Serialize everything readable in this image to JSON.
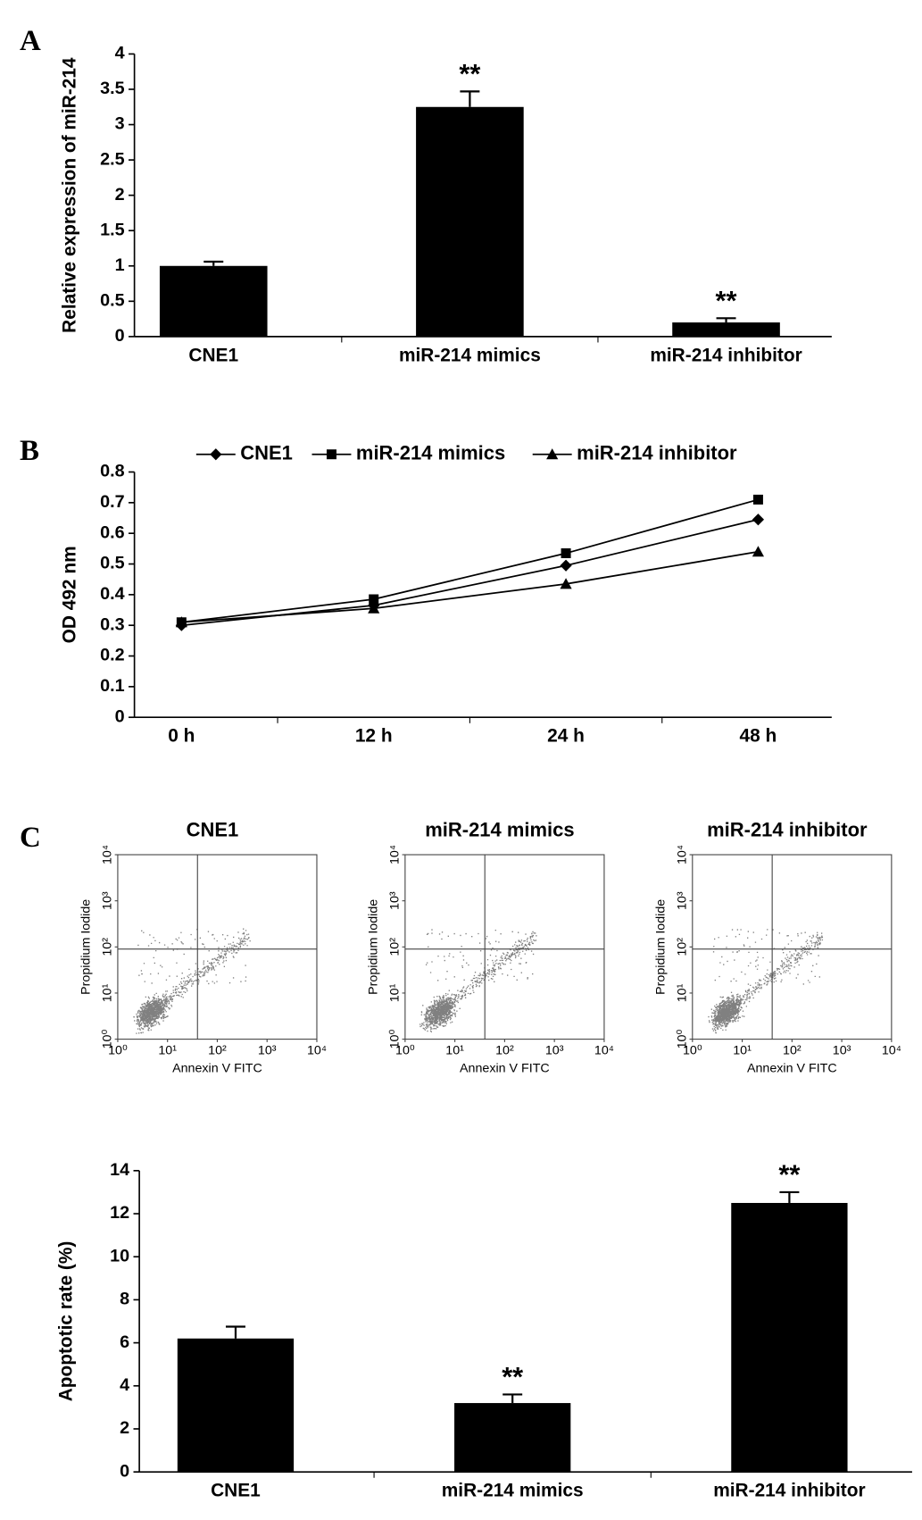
{
  "panel_labels": [
    "A",
    "B",
    "C"
  ],
  "chart_data": [
    {
      "type": "bar",
      "ylabel": "Relative expression of miR-214",
      "categories": [
        "CNE1",
        "miR-214 mimics",
        "miR-214 inhibitor"
      ],
      "values": [
        1.0,
        3.25,
        0.2
      ],
      "errors": [
        0.06,
        0.22,
        0.06
      ],
      "color": "#000000",
      "annotations": [
        {
          "category": "miR-214 mimics",
          "text": "**"
        },
        {
          "category": "miR-214 inhibitor",
          "text": "**"
        }
      ],
      "ylim": [
        0,
        4
      ],
      "yticks": [
        0,
        0.5,
        1,
        1.5,
        2,
        2.5,
        3,
        3.5,
        4
      ]
    },
    {
      "type": "line",
      "ylabel": "OD 492 nm",
      "categories": [
        "0 h",
        "12 h",
        "24 h",
        "48 h"
      ],
      "series": [
        {
          "name": "CNE1",
          "color": "#000000",
          "marker": "diamond",
          "values": [
            0.3,
            0.365,
            0.495,
            0.645
          ]
        },
        {
          "name": "miR-214 mimics",
          "color": "#000000",
          "marker": "square",
          "values": [
            0.31,
            0.385,
            0.535,
            0.71
          ]
        },
        {
          "name": "miR-214 inhibitor",
          "color": "#000000",
          "marker": "triangle",
          "values": [
            0.31,
            0.355,
            0.435,
            0.54
          ]
        }
      ],
      "ylim": [
        0,
        0.8
      ],
      "yticks": [
        0,
        0.1,
        0.2,
        0.3,
        0.4,
        0.5,
        0.6,
        0.7,
        0.8
      ],
      "legend": "top"
    },
    {
      "type": "flow",
      "title": "CNE1",
      "xlabel": "Annexin V FITC",
      "ylabel": "Propidium Iodide",
      "log_scale": true,
      "xlim": [
        1,
        10000
      ],
      "ylim": [
        1,
        10000
      ],
      "gates": {
        "x": 40,
        "y": 90
      },
      "color": "#808080",
      "xticks": [
        {
          "value": 1,
          "label": "10⁰"
        },
        {
          "value": 10,
          "label": "10¹"
        },
        {
          "value": 100,
          "label": "10²"
        },
        {
          "value": 1000,
          "label": "10³"
        },
        {
          "value": 10000,
          "label": "10⁴"
        }
      ],
      "yticks": [
        {
          "value": 1,
          "label": "10⁰"
        },
        {
          "value": 10,
          "label": "10¹"
        },
        {
          "value": 100,
          "label": "10²"
        },
        {
          "value": 1000,
          "label": "10³"
        },
        {
          "value": 10000,
          "label": "10⁴"
        }
      ]
    },
    {
      "type": "flow",
      "title": "miR-214 mimics",
      "xlabel": "Annexin V FITC",
      "ylabel": "Propidium Iodide",
      "log_scale": true,
      "xlim": [
        1,
        10000
      ],
      "ylim": [
        1,
        10000
      ],
      "gates": {
        "x": 40,
        "y": 90
      },
      "color": "#808080",
      "xticks": [
        {
          "value": 1,
          "label": "10⁰"
        },
        {
          "value": 10,
          "label": "10¹"
        },
        {
          "value": 100,
          "label": "10²"
        },
        {
          "value": 1000,
          "label": "10³"
        },
        {
          "value": 10000,
          "label": "10⁴"
        }
      ],
      "yticks": [
        {
          "value": 1,
          "label": "10⁰"
        },
        {
          "value": 10,
          "label": "10¹"
        },
        {
          "value": 100,
          "label": "10²"
        },
        {
          "value": 1000,
          "label": "10³"
        },
        {
          "value": 10000,
          "label": "10⁴"
        }
      ]
    },
    {
      "type": "flow",
      "title": "miR-214 inhibitor",
      "xlabel": "Annexin V FITC",
      "ylabel": "Propidium Iodide",
      "log_scale": true,
      "xlim": [
        1,
        10000
      ],
      "ylim": [
        1,
        10000
      ],
      "gates": {
        "x": 40,
        "y": 90
      },
      "color": "#808080",
      "xticks": [
        {
          "value": 1,
          "label": "10⁰"
        },
        {
          "value": 10,
          "label": "10¹"
        },
        {
          "value": 100,
          "label": "10²"
        },
        {
          "value": 1000,
          "label": "10³"
        },
        {
          "value": 10000,
          "label": "10⁴"
        }
      ],
      "yticks": [
        {
          "value": 1,
          "label": "10⁰"
        },
        {
          "value": 10,
          "label": "10¹"
        },
        {
          "value": 100,
          "label": "10²"
        },
        {
          "value": 1000,
          "label": "10³"
        },
        {
          "value": 10000,
          "label": "10⁴"
        }
      ]
    },
    {
      "type": "bar",
      "ylabel": "Apoptotic rate (%)",
      "categories": [
        "CNE1",
        "miR-214 mimics",
        "miR-214 inhibitor"
      ],
      "values": [
        6.2,
        3.2,
        12.5
      ],
      "errors": [
        0.55,
        0.4,
        0.5
      ],
      "color": "#000000",
      "annotations": [
        {
          "category": "miR-214 mimics",
          "text": "**"
        },
        {
          "category": "miR-214 inhibitor",
          "text": "**"
        }
      ],
      "ylim": [
        0,
        14
      ],
      "yticks": [
        0,
        2,
        4,
        6,
        8,
        10,
        12,
        14
      ]
    }
  ]
}
